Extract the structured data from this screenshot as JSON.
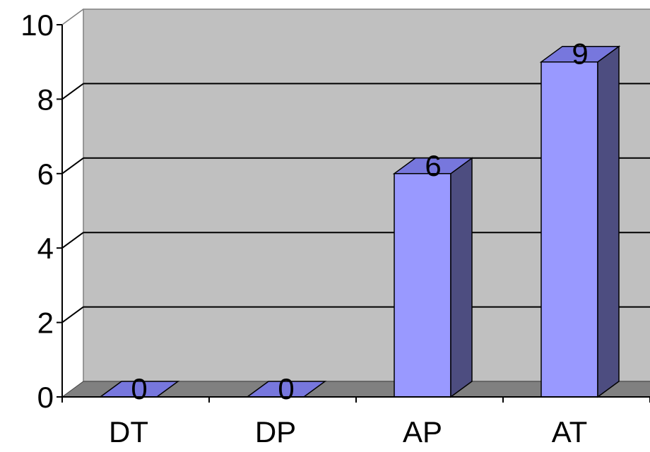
{
  "chart_data": {
    "type": "bar",
    "style": "3d-column",
    "categories": [
      "DT",
      "DP",
      "AP",
      "AT"
    ],
    "values": [
      0,
      0,
      6,
      9
    ],
    "data_labels": [
      "0",
      "0",
      "6",
      "9"
    ],
    "y_ticks": [
      "0",
      "2",
      "4",
      "6",
      "8",
      "10"
    ],
    "ylim": [
      0,
      10
    ],
    "grid": true,
    "legend": "none"
  },
  "colors": {
    "bar_front": "#9999ff",
    "bar_top": "#7777dd",
    "bar_side": "#4d4d80",
    "back_wall": "#c0c0c0",
    "floor": "#808080",
    "gridline": "#000000",
    "text": "#000000"
  }
}
